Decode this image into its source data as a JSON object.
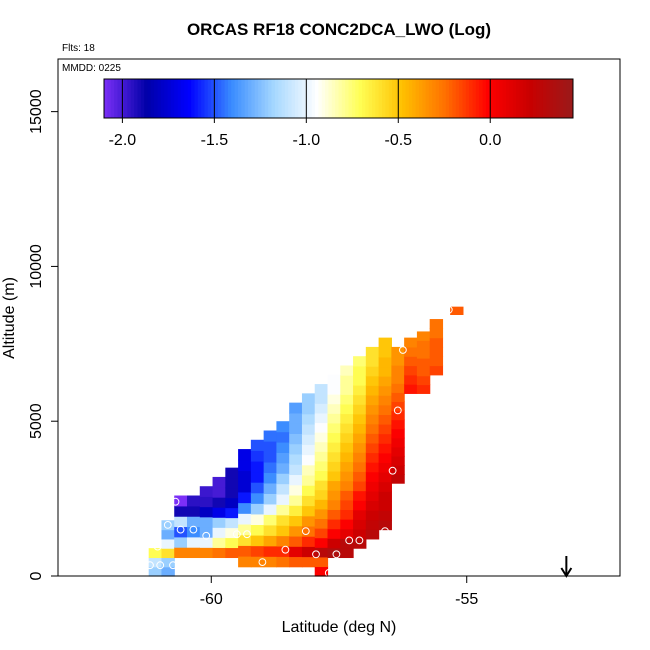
{
  "chart_data": {
    "type": "heatmap",
    "title": "ORCAS RF18 CONC2DCA_LWO (Log)",
    "annotations": {
      "flights": "Flts: 18",
      "date": "MMDD: 0225"
    },
    "xlabel": "Latitude (deg N)",
    "ylabel": "Altitude (m)",
    "xlim": [
      -63.0,
      -52.0
    ],
    "ylim": [
      0,
      16700
    ],
    "xticks": [
      -60,
      -55
    ],
    "xtick_labels": [
      "-60",
      "-55"
    ],
    "yticks": [
      0,
      5000,
      10000,
      15000
    ],
    "ytick_labels": [
      "0",
      "5000",
      "10000",
      "15000"
    ],
    "cell_size": {
      "dlat": 0.25,
      "dalt": 300
    },
    "colorbar": {
      "range": [
        -2.1,
        0.45
      ],
      "ticks": [
        -2.0,
        -1.5,
        -1.0,
        -0.5,
        0.0
      ],
      "tick_labels": [
        "-2.0",
        "-1.5",
        "-1.0",
        "-0.5",
        "0.0"
      ],
      "colors": [
        "#7b2ff7",
        "#0000a8",
        "#0000ff",
        "#3a8cff",
        "#a7d8ff",
        "#ffffff",
        "#ffff55",
        "#ffc000",
        "#ff7000",
        "#ff0000",
        "#c80000",
        "#9a1a1a"
      ]
    },
    "columns": [
      {
        "lat": -61.1,
        "alt_min": 0,
        "alt_max": 900,
        "v": [
          -1.2,
          -1.1,
          -0.7
        ]
      },
      {
        "lat": -60.85,
        "alt_min": 0,
        "alt_max": 1800,
        "v": [
          -1.3,
          -1.2,
          -0.6,
          -1.0,
          -1.3,
          -1.2
        ]
      },
      {
        "lat": -60.6,
        "alt_min": 600,
        "alt_max": 2600,
        "v": [
          -0.3,
          -1.2,
          -1.5,
          -1.1,
          -1.9,
          -2.1
        ]
      },
      {
        "lat": -60.35,
        "alt_min": 600,
        "alt_max": 2600,
        "v": [
          -0.3,
          -1.0,
          -1.4,
          -1.3,
          -1.9,
          -1.95
        ]
      },
      {
        "lat": -60.1,
        "alt_min": 600,
        "alt_max": 2900,
        "v": [
          -0.3,
          -1.0,
          -1.3,
          -1.3,
          -1.8,
          -1.95,
          -1.98
        ]
      },
      {
        "lat": -59.85,
        "alt_min": 600,
        "alt_max": 3200,
        "v": [
          -0.25,
          -0.8,
          -1.0,
          -1.2,
          -1.7,
          -1.9,
          -2.0,
          -2.0
        ]
      },
      {
        "lat": -59.6,
        "alt_min": 600,
        "alt_max": 3500,
        "v": [
          -0.2,
          -0.7,
          -0.9,
          -1.1,
          -1.6,
          -1.8,
          -1.9,
          -1.9,
          -1.9
        ]
      },
      {
        "lat": -59.35,
        "alt_min": 300,
        "alt_max": 4100,
        "v": [
          -0.3,
          -0.2,
          -0.6,
          -0.8,
          -1.0,
          -1.4,
          -1.6,
          -1.75,
          -1.75,
          -1.7,
          -1.7
        ]
      },
      {
        "lat": -59.1,
        "alt_min": 300,
        "alt_max": 4400,
        "v": [
          -0.3,
          -0.15,
          -0.5,
          -0.7,
          -0.9,
          -1.2,
          -1.4,
          -1.5,
          -1.6,
          -1.6,
          -1.55,
          -1.5
        ]
      },
      {
        "lat": -58.85,
        "alt_min": 300,
        "alt_max": 4700,
        "v": [
          -0.3,
          -0.1,
          -0.4,
          -0.6,
          -0.75,
          -1.0,
          -1.2,
          -1.3,
          -1.4,
          -1.45,
          -1.5,
          -1.5,
          -1.45
        ]
      },
      {
        "lat": -58.6,
        "alt_min": 300,
        "alt_max": 5000,
        "v": [
          -0.25,
          -0.1,
          -0.3,
          -0.5,
          -0.6,
          -0.8,
          -1.0,
          -1.1,
          -1.2,
          -1.3,
          -1.35,
          -1.4,
          -1.45,
          -1.4
        ]
      },
      {
        "lat": -58.35,
        "alt_min": 300,
        "alt_max": 5600,
        "v": [
          -0.2,
          0.1,
          -0.2,
          -0.35,
          -0.5,
          -0.65,
          -0.8,
          -0.9,
          -1.0,
          -1.1,
          -1.15,
          -1.2,
          -1.25,
          -1.3,
          -1.3,
          -1.35
        ]
      },
      {
        "lat": -58.1,
        "alt_min": 300,
        "alt_max": 5900,
        "v": [
          -0.2,
          0.2,
          -0.1,
          -0.25,
          -0.35,
          -0.5,
          -0.6,
          -0.7,
          -0.8,
          -0.85,
          -0.95,
          -1.0,
          -1.05,
          -1.1,
          -1.15,
          -1.2,
          -1.2
        ]
      },
      {
        "lat": -57.85,
        "alt_min": 0,
        "alt_max": 6200,
        "v": [
          0.0,
          -0.2,
          0.3,
          0.0,
          -0.15,
          -0.25,
          -0.35,
          -0.45,
          -0.55,
          -0.6,
          -0.7,
          -0.75,
          -0.8,
          -0.85,
          -0.9,
          -0.95,
          -1.0,
          -1.05,
          -1.1,
          -1.1
        ]
      },
      {
        "lat": -57.6,
        "alt_min": 600,
        "alt_max": 6500,
        "v": [
          0.35,
          0.2,
          0.0,
          -0.1,
          -0.2,
          -0.3,
          -0.35,
          -0.4,
          -0.5,
          -0.55,
          -0.6,
          -0.65,
          -0.7,
          -0.75,
          -0.8,
          -0.85,
          -0.9,
          -0.95,
          -0.95
        ]
      },
      {
        "lat": -57.35,
        "alt_min": 600,
        "alt_max": 6800,
        "v": [
          0.3,
          0.3,
          0.1,
          0.0,
          -0.1,
          -0.15,
          -0.2,
          -0.3,
          -0.35,
          -0.4,
          -0.45,
          -0.5,
          -0.55,
          -0.6,
          -0.65,
          -0.7,
          -0.75,
          -0.8,
          -0.8,
          -0.85
        ]
      },
      {
        "lat": -57.1,
        "alt_min": 900,
        "alt_max": 7100,
        "v": [
          0.3,
          0.2,
          0.15,
          0.1,
          0.0,
          -0.05,
          -0.15,
          -0.2,
          -0.25,
          -0.3,
          -0.35,
          -0.4,
          -0.45,
          -0.5,
          -0.55,
          -0.6,
          -0.65,
          -0.7,
          -0.7,
          -0.75
        ]
      },
      {
        "lat": -56.85,
        "alt_min": 1200,
        "alt_max": 7400,
        "v": [
          0.3,
          0.25,
          0.2,
          0.15,
          0.1,
          0.05,
          0.0,
          -0.05,
          -0.1,
          -0.15,
          -0.2,
          -0.25,
          -0.3,
          -0.35,
          -0.4,
          -0.45,
          -0.5,
          -0.55,
          -0.6,
          -0.6
        ]
      },
      {
        "lat": -56.6,
        "alt_min": 1500,
        "alt_max": 7700,
        "v": [
          0.3,
          0.25,
          0.2,
          0.2,
          0.15,
          0.1,
          0.05,
          0.0,
          -0.05,
          -0.1,
          -0.15,
          -0.2,
          -0.25,
          -0.3,
          -0.35,
          -0.4,
          -0.45,
          -0.45,
          -0.5,
          -0.5
        ]
      },
      {
        "lat": -56.35,
        "alt_min": 3000,
        "alt_max": 7400,
        "v": [
          0.25,
          0.2,
          0.15,
          0.1,
          0.05,
          0.0,
          -0.05,
          -0.1,
          -0.15,
          -0.2,
          -0.25,
          -0.3,
          -0.3,
          -0.35,
          -0.35
        ]
      },
      {
        "lat": -56.1,
        "alt_min": 5900,
        "alt_max": 7700,
        "v": [
          -0.05,
          -0.1,
          -0.15,
          -0.2,
          -0.25,
          -0.3
        ]
      },
      {
        "lat": -55.85,
        "alt_min": 5900,
        "alt_max": 7900,
        "v": [
          -0.1,
          -0.15,
          -0.2,
          -0.2,
          -0.25,
          -0.25,
          -0.3
        ]
      },
      {
        "lat": -55.6,
        "alt_min": 6500,
        "alt_max": 8300,
        "v": [
          -0.15,
          -0.2,
          -0.2,
          -0.2,
          -0.25,
          -0.25
        ]
      },
      {
        "lat": -55.2,
        "alt_min": 8450,
        "alt_max": 8700,
        "v": [
          -0.2
        ]
      }
    ],
    "markers": [
      {
        "lat": -61.2,
        "alt": 350
      },
      {
        "lat": -61.0,
        "alt": 350
      },
      {
        "lat": -60.75,
        "alt": 350
      },
      {
        "lat": -61.05,
        "alt": 950
      },
      {
        "lat": -60.85,
        "alt": 1650
      },
      {
        "lat": -60.6,
        "alt": 1500
      },
      {
        "lat": -60.35,
        "alt": 1500
      },
      {
        "lat": -60.1,
        "alt": 1300
      },
      {
        "lat": -60.7,
        "alt": 2400
      },
      {
        "lat": -59.5,
        "alt": 1350
      },
      {
        "lat": -59.3,
        "alt": 1350
      },
      {
        "lat": -59.0,
        "alt": 450
      },
      {
        "lat": -58.55,
        "alt": 850
      },
      {
        "lat": -58.15,
        "alt": 1450
      },
      {
        "lat": -57.95,
        "alt": 700
      },
      {
        "lat": -57.55,
        "alt": 700
      },
      {
        "lat": -57.3,
        "alt": 1150
      },
      {
        "lat": -57.1,
        "alt": 1150
      },
      {
        "lat": -57.7,
        "alt": 100
      },
      {
        "lat": -56.6,
        "alt": 1450
      },
      {
        "lat": -56.45,
        "alt": 3400
      },
      {
        "lat": -56.35,
        "alt": 5350
      },
      {
        "lat": -56.25,
        "alt": 7300
      },
      {
        "lat": -55.35,
        "alt": 8600
      }
    ],
    "arrow": {
      "lat": -53.05
    }
  }
}
